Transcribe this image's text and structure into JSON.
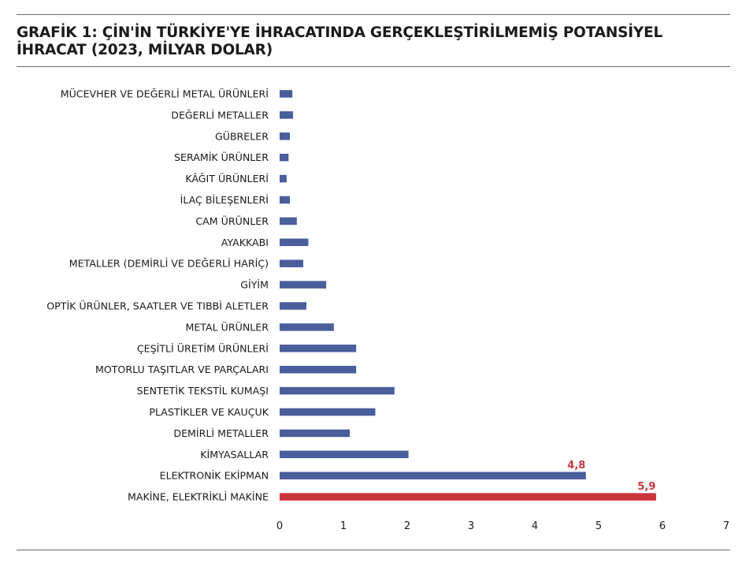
{
  "chart_data": {
    "type": "bar",
    "orientation": "horizontal",
    "title": "GRAFİK 1: ÇİN'İN TÜRKİYE'YE İHRACATINDA GERÇEKLEŞTİRİLMEMİŞ POTANSİYEL İHRACAT (2023, MİLYAR DOLAR)",
    "categories": [
      "MÜCEVHER VE DEĞERLİ METAL ÜRÜNLERİ",
      "DEĞERLİ METALLER",
      "GÜBRELER",
      "SERAMİK ÜRÜNLER",
      "KÂĞIT ÜRÜNLERİ",
      "İLAÇ BİLEŞENLERİ",
      "CAM ÜRÜNLER",
      "AYAKKABI",
      "METALLER (DEMİRLİ VE DEĞERLİ HARİÇ)",
      "GİYİM",
      "OPTİK ÜRÜNLER, SAATLER VE TIBBİ ALETLER",
      "METAL ÜRÜNLER",
      "ÇEŞİTLİ ÜRETİM ÜRÜNLERİ",
      "MOTORLU TAŞITLAR VE PARÇALARI",
      "SENTETİK TEKSTİL KUMAŞI",
      "PLASTİKLER VE KAUÇUK",
      "DEMİRLİ METALLER",
      "KİMYASALLAR",
      "ELEKTRONİK EKİPMAN",
      "MAKİNE, ELEKTRİKLİ MAKİNE"
    ],
    "values": [
      0.2,
      0.21,
      0.16,
      0.14,
      0.11,
      0.16,
      0.27,
      0.45,
      0.37,
      0.73,
      0.42,
      0.85,
      1.2,
      1.2,
      1.8,
      1.5,
      1.1,
      2.02,
      4.8,
      5.9
    ],
    "data_labels": [
      {
        "index": 18,
        "text": "4,8"
      },
      {
        "index": 19,
        "text": "5,9"
      }
    ],
    "xlim": [
      0,
      7
    ],
    "xticks": [
      "0",
      "1",
      "2",
      "3",
      "4",
      "5",
      "6",
      "7"
    ],
    "grid": false,
    "colors": {
      "default_bar": "#4a5e9b",
      "highlight_bar": "#c8353a",
      "highlight_label": "#c8353a"
    },
    "highlight_index": 19
  }
}
